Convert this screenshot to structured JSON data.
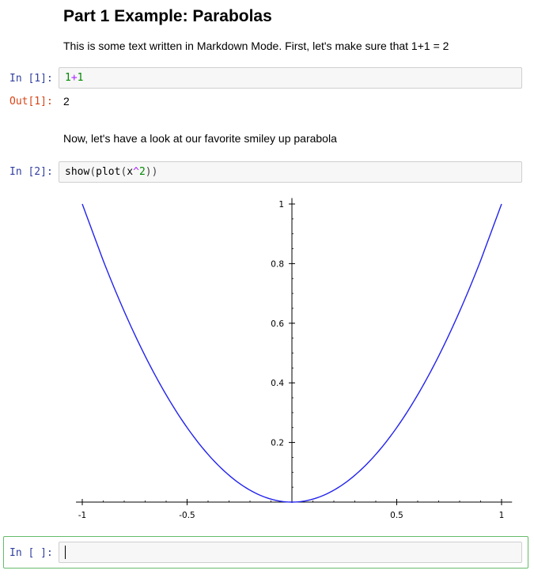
{
  "markdown": {
    "heading": "Part 1 Example: Parabolas",
    "para1": "This is some text written in Markdown Mode. First, let's make sure that 1+1 = 2",
    "para2": "Now, let's have a look at our favorite smiley up parabola"
  },
  "cells": {
    "cell1": {
      "in_prompt": "In [1]:",
      "code_tokens": [
        "1",
        "+",
        "1"
      ],
      "out_prompt": "Out[1]:",
      "output": "2"
    },
    "cell2": {
      "in_prompt": "In [2]:",
      "code_tokens": [
        "show",
        "(",
        "plot",
        "(",
        "x",
        "^",
        "2",
        "))"
      ]
    },
    "cell3": {
      "in_prompt": "In [ ]:",
      "code": ""
    }
  },
  "chart_data": {
    "type": "line",
    "title": "",
    "xlabel": "",
    "ylabel": "",
    "xlim": [
      -1,
      1
    ],
    "ylim": [
      0,
      1
    ],
    "x_tick_labels": [
      "-1",
      "-0.5",
      "0.5",
      "1"
    ],
    "y_tick_labels": [
      "0.2",
      "0.4",
      "0.6",
      "0.8",
      "1"
    ],
    "grid": false,
    "series": [
      {
        "color": "#2222ee",
        "x": [
          -1,
          -0.9,
          -0.8,
          -0.7,
          -0.6,
          -0.5,
          -0.4,
          -0.3,
          -0.2,
          -0.1,
          0,
          0.1,
          0.2,
          0.3,
          0.4,
          0.5,
          0.6,
          0.7,
          0.8,
          0.9,
          1
        ],
        "y": [
          1,
          0.81,
          0.64,
          0.49,
          0.36,
          0.25,
          0.16,
          0.09,
          0.04,
          0.01,
          0,
          0.01,
          0.04,
          0.09,
          0.16,
          0.25,
          0.36,
          0.49,
          0.64,
          0.81,
          1
        ]
      }
    ]
  }
}
